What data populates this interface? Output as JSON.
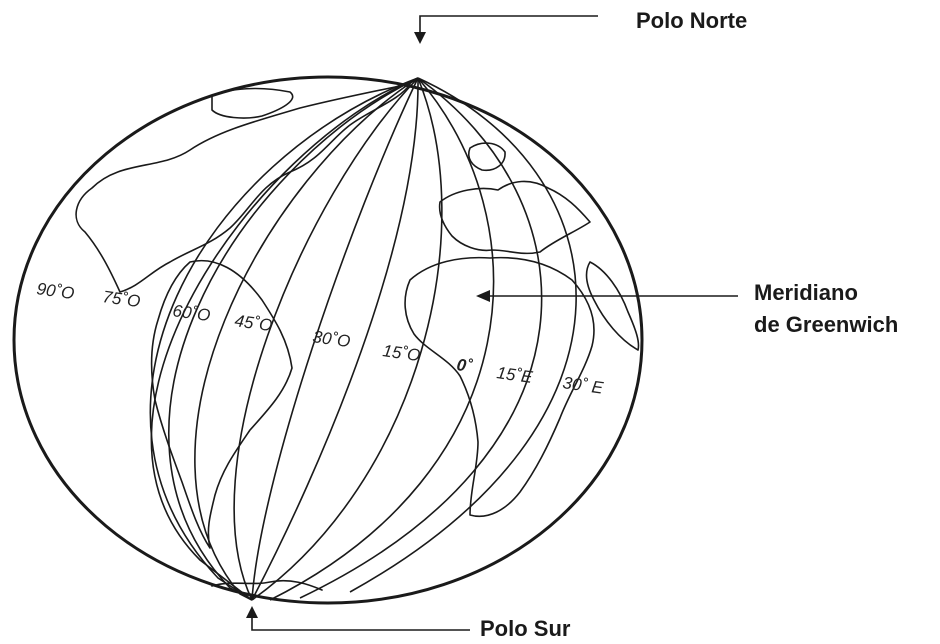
{
  "labels": {
    "north_pole": "Polo Norte",
    "south_pole": "Polo Sur",
    "greenwich_line1": "Meridiano",
    "greenwich_line2": "de Greenwich"
  },
  "longitudes": [
    {
      "text": "90˚O"
    },
    {
      "text": "75˚O"
    },
    {
      "text": "60˚O"
    },
    {
      "text": "45˚O"
    },
    {
      "text": "30˚O"
    },
    {
      "text": "15˚O"
    },
    {
      "text": "0˚"
    },
    {
      "text": "15˚E"
    },
    {
      "text": "30˚ E"
    }
  ]
}
